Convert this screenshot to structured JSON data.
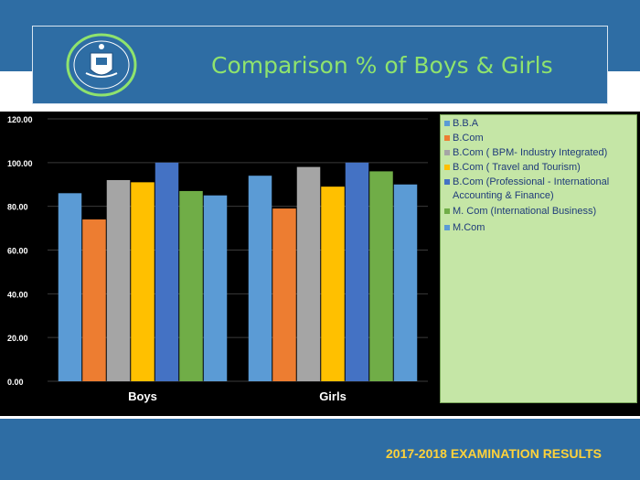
{
  "header": {
    "title": "Comparison % of Boys & Girls",
    "title_color": "#8fe36d",
    "band_color": "#2e6da4"
  },
  "logo": {
    "icon": "college-crest-icon"
  },
  "footer": {
    "text": "2017-2018 EXAMINATION RESULTS",
    "text_color": "#ffd23a"
  },
  "chart_data": {
    "type": "bar",
    "categories": [
      "Boys",
      "Girls"
    ],
    "ylim": [
      0,
      120
    ],
    "yticks": [
      "0.00",
      "20.00",
      "40.00",
      "60.00",
      "80.00",
      "100.00",
      "120.00"
    ],
    "grid": true,
    "legend_position": "right",
    "series": [
      {
        "name": "B.B.A",
        "color": "#5b9bd5",
        "values": [
          86,
          94
        ]
      },
      {
        "name": "B.Com",
        "color": "#ed7d31",
        "values": [
          74,
          79
        ]
      },
      {
        "name": "B.Com ( BPM- Industry Integrated)",
        "color": "#a5a5a5",
        "values": [
          92,
          98
        ]
      },
      {
        "name": "B.Com ( Travel and Tourism)",
        "color": "#ffc000",
        "values": [
          91,
          89
        ]
      },
      {
        "name": "B.Com (Professional - International Accounting & Finance)",
        "color": "#4472c4",
        "values": [
          100,
          100
        ]
      },
      {
        "name": "M. Com (International Business)",
        "color": "#70ad47",
        "values": [
          87,
          96
        ]
      },
      {
        "name": "M.Com",
        "color": "#5b9bd5",
        "values": [
          85,
          90
        ]
      }
    ]
  }
}
